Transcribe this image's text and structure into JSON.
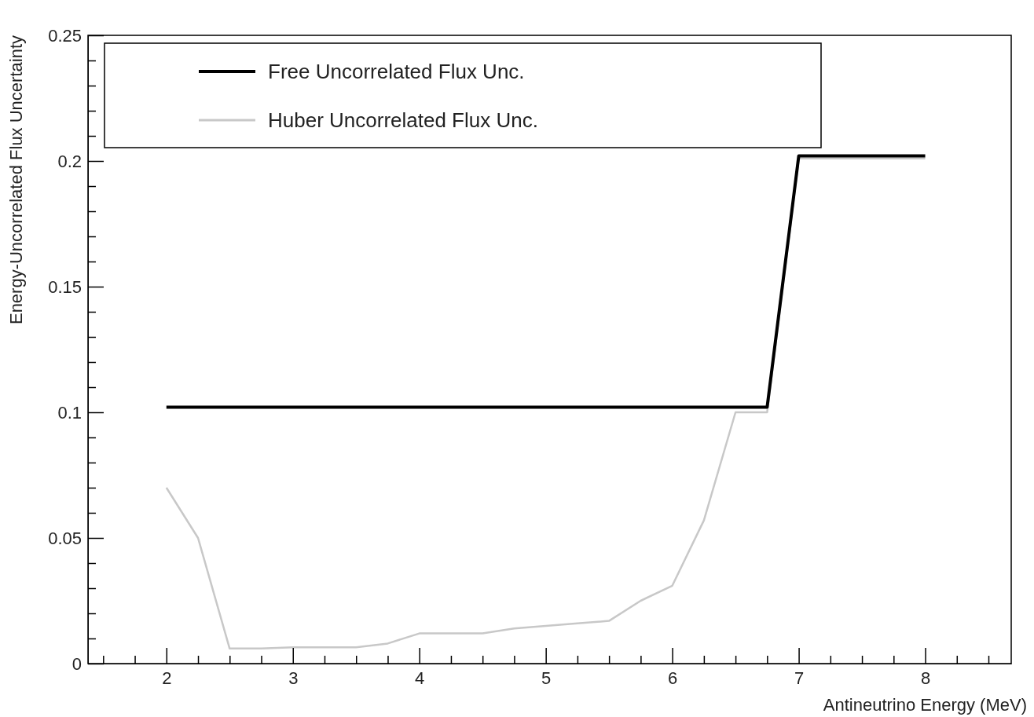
{
  "chart_data": {
    "type": "line",
    "xlabel": "Antineutrino Energy (MeV)",
    "ylabel": "Energy-Uncorrelated Flux Uncertainty",
    "xlim": [
      1.38,
      8.68
    ],
    "ylim": [
      0,
      0.25
    ],
    "xticks": [
      {
        "value": 1.5,
        "label": null
      },
      {
        "value": 1.75,
        "label": null
      },
      2,
      {
        "value": 2.25,
        "label": null
      },
      {
        "value": 2.5,
        "label": null
      },
      {
        "value": 2.75,
        "label": null
      },
      3,
      {
        "value": 3.25,
        "label": null
      },
      {
        "value": 3.5,
        "label": null
      },
      {
        "value": 3.75,
        "label": null
      },
      4,
      {
        "value": 4.25,
        "label": null
      },
      {
        "value": 4.5,
        "label": null
      },
      {
        "value": 4.75,
        "label": null
      },
      5,
      {
        "value": 5.25,
        "label": null
      },
      {
        "value": 5.5,
        "label": null
      },
      {
        "value": 5.75,
        "label": null
      },
      6,
      {
        "value": 6.25,
        "label": null
      },
      {
        "value": 6.5,
        "label": null
      },
      {
        "value": 6.75,
        "label": null
      },
      7,
      {
        "value": 7.25,
        "label": null
      },
      {
        "value": 7.5,
        "label": null
      },
      {
        "value": 7.75,
        "label": null
      },
      8,
      {
        "value": 8.25,
        "label": null
      },
      {
        "value": 8.5,
        "label": null
      }
    ],
    "yticks": [
      0,
      {
        "value": 0.01,
        "label": null
      },
      {
        "value": 0.02,
        "label": null
      },
      {
        "value": 0.03,
        "label": null
      },
      {
        "value": 0.04,
        "label": null
      },
      0.05,
      {
        "value": 0.06,
        "label": null
      },
      {
        "value": 0.07,
        "label": null
      },
      {
        "value": 0.08,
        "label": null
      },
      {
        "value": 0.09,
        "label": null
      },
      0.1,
      {
        "value": 0.11,
        "label": null
      },
      {
        "value": 0.12,
        "label": null
      },
      {
        "value": 0.13,
        "label": null
      },
      {
        "value": 0.14,
        "label": null
      },
      0.15,
      {
        "value": 0.16,
        "label": null
      },
      {
        "value": 0.17,
        "label": null
      },
      {
        "value": 0.18,
        "label": null
      },
      {
        "value": 0.19,
        "label": null
      },
      0.2,
      {
        "value": 0.21,
        "label": null
      },
      {
        "value": 0.22,
        "label": null
      },
      {
        "value": 0.23,
        "label": null
      },
      {
        "value": 0.24,
        "label": null
      },
      0.25
    ],
    "grid": false,
    "legend": "top left",
    "marker": "none",
    "line_style": "solid",
    "series": [
      {
        "name": "Huber Uncorrelated Flux Unc.",
        "color": "#c8c8c8",
        "x": [
          2,
          2.25,
          2.5,
          2.75,
          3,
          3.5,
          3.75,
          4,
          4.5,
          4.75,
          5,
          5.25,
          5.5,
          5.75,
          6,
          6.25,
          6.5,
          6.75,
          7,
          8
        ],
        "values": [
          0.07,
          0.05,
          0.006,
          0.006,
          0.0065,
          0.0065,
          0.008,
          0.012,
          0.012,
          0.014,
          0.015,
          0.016,
          0.017,
          0.025,
          0.031,
          0.057,
          0.1,
          0.1,
          0.201,
          0.201
        ]
      },
      {
        "name": "Free Uncorrelated Flux Unc.",
        "color": "#000000",
        "x": [
          2,
          6.75,
          7,
          8
        ],
        "values": [
          0.102,
          0.102,
          0.202,
          0.202
        ]
      }
    ]
  }
}
